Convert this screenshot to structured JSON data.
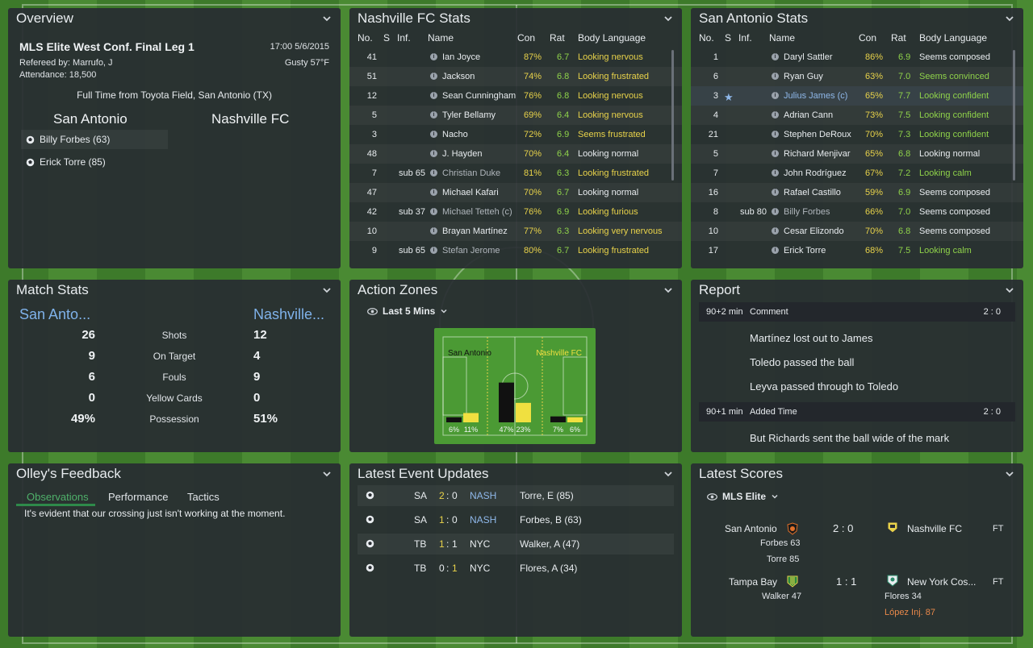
{
  "colors": {
    "accent_blue": "#7fb2ea",
    "yellow": "#e8d24a",
    "green": "#8fd24a",
    "orange": "#e8884a",
    "panel": "#2a2e33"
  },
  "overview": {
    "title": "Overview",
    "competition": "MLS Elite West Conf. Final Leg 1",
    "datetime": "17:00 5/6/2015",
    "referee": "Refereed by: Marrufo, J",
    "weather": "Gusty 57°F",
    "attendance": "Attendance: 18,500",
    "full_time": "Full Time from Toyota Field, San Antonio (TX)",
    "home_team": "San Antonio",
    "away_team": "Nashville FC",
    "scorers": [
      "Billy Forbes (63)",
      "Erick Torre (85)"
    ]
  },
  "nashville_stats": {
    "title": "Nashville FC Stats",
    "headers": {
      "no": "No.",
      "s": "S",
      "inf": "Inf.",
      "name": "Name",
      "con": "Con",
      "rat": "Rat",
      "body": "Body Language"
    },
    "rows": [
      {
        "no": "41",
        "s": "",
        "name": "Ian Joyce",
        "con": "87%",
        "rat": "6.7",
        "body": "Looking nervous",
        "body_color": "yel"
      },
      {
        "no": "51",
        "s": "",
        "name": "Jackson",
        "con": "74%",
        "rat": "6.8",
        "body": "Looking frustrated",
        "body_color": "yel"
      },
      {
        "no": "12",
        "s": "",
        "name": "Sean Cunningham",
        "con": "76%",
        "rat": "6.8",
        "body": "Looking nervous",
        "body_color": "yel"
      },
      {
        "no": "5",
        "s": "",
        "name": "Tyler Bellamy",
        "con": "69%",
        "rat": "6.4",
        "body": "Looking nervous",
        "body_color": "yel"
      },
      {
        "no": "3",
        "s": "",
        "name": "Nacho",
        "con": "72%",
        "rat": "6.9",
        "body": "Seems frustrated",
        "body_color": "yel"
      },
      {
        "no": "48",
        "s": "",
        "name": "J. Hayden",
        "con": "70%",
        "rat": "6.4",
        "body": "Looking normal",
        "body_color": "wht"
      },
      {
        "no": "7",
        "s": "sub 65",
        "name": "Christian Duke",
        "con": "81%",
        "rat": "6.3",
        "body": "Looking frustrated",
        "body_color": "yel"
      },
      {
        "no": "47",
        "s": "",
        "name": "Michael Kafari",
        "con": "70%",
        "rat": "6.7",
        "body": "Looking normal",
        "body_color": "wht"
      },
      {
        "no": "42",
        "s": "sub 37",
        "name": "Michael Tetteh (c)",
        "con": "76%",
        "rat": "6.9",
        "body": "Looking furious",
        "body_color": "yel"
      },
      {
        "no": "10",
        "s": "",
        "name": "Brayan Martínez",
        "con": "77%",
        "rat": "6.3",
        "body": "Looking very nervous",
        "body_color": "yel"
      },
      {
        "no": "9",
        "s": "sub 65",
        "name": "Stefan Jerome",
        "con": "80%",
        "rat": "6.7",
        "body": "Looking frustrated",
        "body_color": "yel"
      }
    ]
  },
  "sanantonio_stats": {
    "title": "San Antonio Stats",
    "headers": {
      "no": "No.",
      "s": "S",
      "inf": "Inf.",
      "name": "Name",
      "con": "Con",
      "rat": "Rat",
      "body": "Body Language"
    },
    "rows": [
      {
        "no": "1",
        "s": "",
        "name": "Daryl Sattler",
        "con": "86%",
        "rat": "6.9",
        "body": "Seems composed",
        "body_color": "wht"
      },
      {
        "no": "6",
        "s": "",
        "name": "Ryan Guy",
        "con": "63%",
        "rat": "7.0",
        "body": "Seems convinced",
        "body_color": "grn"
      },
      {
        "no": "3",
        "s": "★",
        "name": "Julius James (c)",
        "con": "65%",
        "rat": "7.7",
        "body": "Looking confident",
        "body_color": "grn"
      },
      {
        "no": "4",
        "s": "",
        "name": "Adrian Cann",
        "con": "73%",
        "rat": "7.5",
        "body": "Looking confident",
        "body_color": "grn"
      },
      {
        "no": "21",
        "s": "",
        "name": "Stephen DeRoux",
        "con": "70%",
        "rat": "7.3",
        "body": "Looking confident",
        "body_color": "grn"
      },
      {
        "no": "5",
        "s": "",
        "name": "Richard Menjivar",
        "con": "65%",
        "rat": "6.8",
        "body": "Looking normal",
        "body_color": "wht"
      },
      {
        "no": "7",
        "s": "",
        "name": "John Rodríguez",
        "con": "67%",
        "rat": "7.2",
        "body": "Looking calm",
        "body_color": "grn"
      },
      {
        "no": "16",
        "s": "",
        "name": "Rafael Castillo",
        "con": "59%",
        "rat": "6.9",
        "body": "Seems composed",
        "body_color": "wht"
      },
      {
        "no": "8",
        "s": "sub 80",
        "name": "Billy Forbes",
        "con": "66%",
        "rat": "7.0",
        "body": "Seems composed",
        "body_color": "wht"
      },
      {
        "no": "10",
        "s": "",
        "name": "Cesar Elizondo",
        "con": "70%",
        "rat": "6.8",
        "body": "Seems composed",
        "body_color": "wht"
      },
      {
        "no": "17",
        "s": "",
        "name": "Erick Torre",
        "con": "68%",
        "rat": "7.5",
        "body": "Looking calm",
        "body_color": "grn"
      }
    ]
  },
  "match_stats": {
    "title": "Match Stats",
    "home": "San Anto...",
    "away": "Nashville...",
    "rows": [
      {
        "home": "26",
        "label": "Shots",
        "away": "12"
      },
      {
        "home": "9",
        "label": "On Target",
        "away": "4"
      },
      {
        "home": "6",
        "label": "Fouls",
        "away": "9"
      },
      {
        "home": "0",
        "label": "Yellow Cards",
        "away": "0"
      },
      {
        "home": "49%",
        "label": "Possession",
        "away": "51%"
      }
    ]
  },
  "action_zones": {
    "title": "Action Zones",
    "filter": "Last 5 Mins",
    "home_label": "San Antonio",
    "away_label": "Nashville FC",
    "zones": [
      {
        "home": 6,
        "away": 11,
        "home_label": "6%",
        "away_label": "11%"
      },
      {
        "home": 47,
        "away": 23,
        "home_label": "47%",
        "away_label": "23%"
      },
      {
        "home": 7,
        "away": 6,
        "home_label": "7%",
        "away_label": "6%"
      }
    ]
  },
  "report": {
    "title": "Report",
    "entries": [
      {
        "time": "90+2 min",
        "type": "Comment",
        "score": "2 : 0"
      },
      {
        "time": "90+1 min",
        "type": "Added Time",
        "score": "2 : 0"
      }
    ],
    "lines": [
      "Martínez lost out to James",
      "Toledo passed the ball",
      "Leyva passed through to Toledo",
      "But Richards sent the ball wide of the mark"
    ]
  },
  "feedback": {
    "title": "Olley's Feedback",
    "tabs": [
      "Observations",
      "Performance",
      "Tactics"
    ],
    "text": "It's evident that our crossing just isn't working at the moment."
  },
  "events": {
    "title": "Latest Event Updates",
    "rows": [
      {
        "home": "SA",
        "hs": "2",
        "as": "0",
        "away": "NASH",
        "player": "Torre, E (85)",
        "hl": "home"
      },
      {
        "home": "SA",
        "hs": "1",
        "as": "0",
        "away": "NASH",
        "player": "Forbes, B (63)",
        "hl": "home"
      },
      {
        "home": "TB",
        "hs": "1",
        "as": "1",
        "away": "NYC",
        "player": "Walker, A (47)",
        "hl": "home"
      },
      {
        "home": "TB",
        "hs": "0",
        "as": "1",
        "away": "NYC",
        "player": "Flores, A (34)",
        "hl": "away"
      }
    ]
  },
  "scores": {
    "title": "Latest Scores",
    "filter": "MLS Elite",
    "games": [
      {
        "home": "San Antonio",
        "score": "2 : 0",
        "away": "Nashville FC",
        "status": "FT",
        "home_scorers": [
          "Forbes 63",
          "Torre 85"
        ],
        "away_scorers": [],
        "away_notes": []
      },
      {
        "home": "Tampa Bay",
        "score": "1 : 1",
        "away": "New York Cos...",
        "status": "FT",
        "home_scorers": [
          "Walker 47"
        ],
        "away_scorers": [
          "Flores 34"
        ],
        "away_notes": [
          "López Inj. 87"
        ]
      }
    ]
  }
}
